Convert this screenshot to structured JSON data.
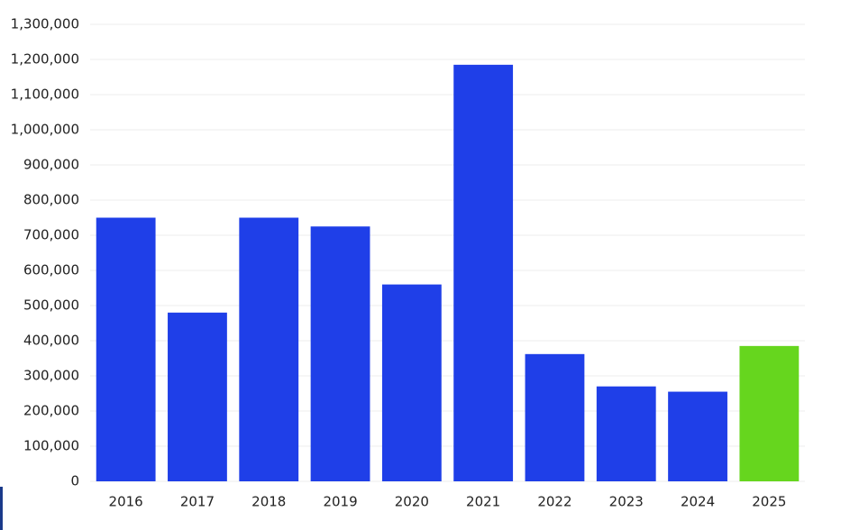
{
  "chart_data": {
    "type": "bar",
    "categories": [
      "2016",
      "2017",
      "2018",
      "2019",
      "2020",
      "2021",
      "2022",
      "2023",
      "2024",
      "2025"
    ],
    "values": [
      750000,
      480000,
      750000,
      725000,
      560000,
      1185000,
      362000,
      270000,
      255000,
      385000
    ],
    "colors": [
      "#1f3fe8",
      "#1f3fe8",
      "#1f3fe8",
      "#1f3fe8",
      "#1f3fe8",
      "#1f3fe8",
      "#1f3fe8",
      "#1f3fe8",
      "#1f3fe8",
      "#66d61e"
    ],
    "ylim": [
      0,
      1300000
    ],
    "yticks": [
      0,
      {
        "value": 100000,
        "label": "100,000"
      },
      {
        "value": 200000,
        "label": "200,000"
      },
      {
        "value": 300000,
        "label": "300,000"
      },
      {
        "value": 400000,
        "label": "400,000"
      },
      {
        "value": 500000,
        "label": "500,000"
      },
      {
        "value": 600000,
        "label": "600,000"
      },
      {
        "value": 700000,
        "label": "700,000"
      },
      {
        "value": 800000,
        "label": "800,000"
      },
      {
        "value": 900000,
        "label": "900,000"
      },
      {
        "value": 1000000,
        "label": "1,000,000"
      },
      {
        "value": 1100000,
        "label": "1,100,000"
      },
      {
        "value": 1200000,
        "label": "1,200,000"
      },
      {
        "value": 1300000,
        "label": "1,300,000"
      }
    ],
    "grid": true
  }
}
